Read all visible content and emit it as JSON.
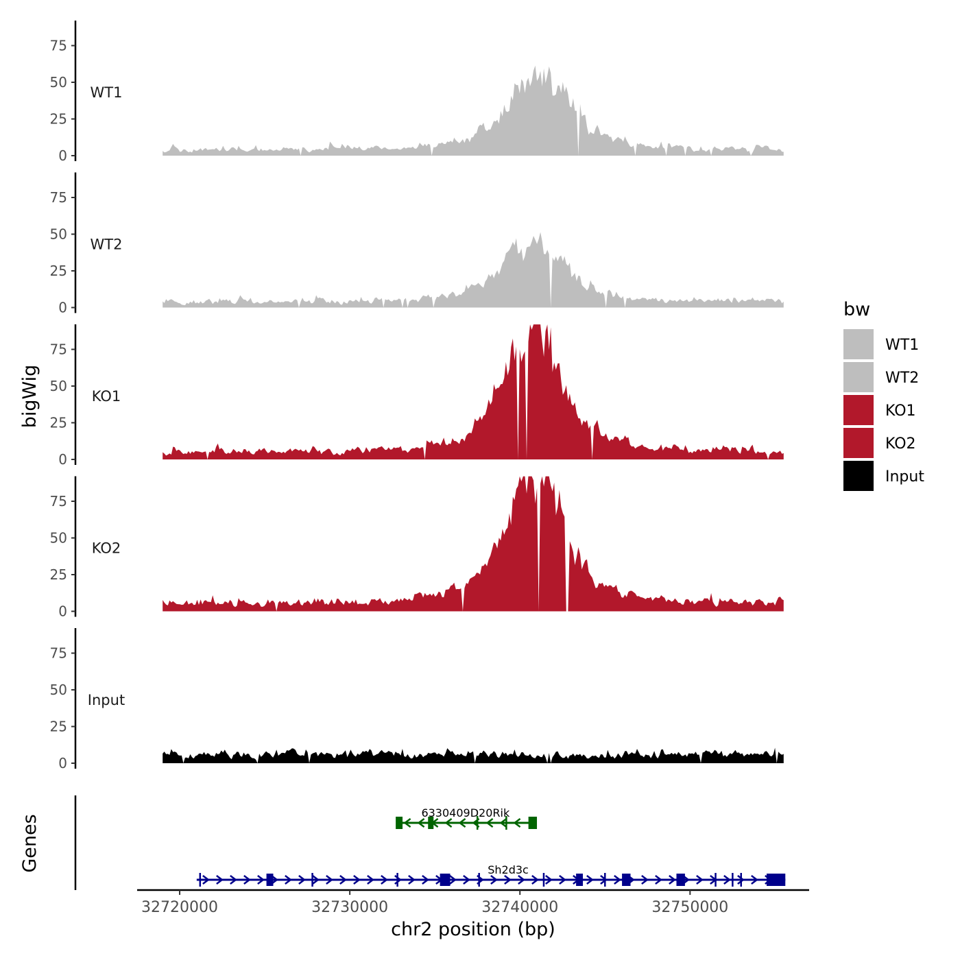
{
  "chart_data": {
    "type": "area",
    "y_axis_title": "bigWig",
    "x_axis_title": "chr2 position (bp)",
    "x_range": [
      32717500,
      32757000
    ],
    "data_x_range": [
      32719000,
      32755500
    ],
    "x_ticks": [
      32720000,
      32730000,
      32740000,
      32750000
    ],
    "x_tick_labels": [
      "32720000",
      "32730000",
      "32740000",
      "32750000"
    ],
    "y_range": [
      0,
      95
    ],
    "y_ticks": [
      0,
      25,
      50,
      75
    ],
    "y_tick_labels": [
      "0",
      "25",
      "50",
      "75"
    ],
    "tracks": [
      {
        "name": "WT1",
        "color": "#bebebe",
        "baseline": 5,
        "noise": 6,
        "peak_center": 32741000,
        "peak_height": 48,
        "peak_width": 1100,
        "seed": 11
      },
      {
        "name": "WT2",
        "color": "#bebebe",
        "baseline": 5,
        "noise": 5,
        "peak_center": 32740700,
        "peak_height": 38,
        "peak_width": 1100,
        "seed": 23
      },
      {
        "name": "KO1",
        "color": "#b2182b",
        "baseline": 6,
        "noise": 7,
        "peak_center": 32740700,
        "peak_height": 82,
        "peak_width": 1000,
        "seed": 37
      },
      {
        "name": "KO2",
        "color": "#b2182b",
        "baseline": 7,
        "noise": 6,
        "peak_center": 32740700,
        "peak_height": 88,
        "peak_width": 1000,
        "seed": 53
      },
      {
        "name": "Input",
        "color": "#000000",
        "baseline": 7,
        "noise": 5,
        "peak_center": 32740000,
        "peak_height": 0,
        "peak_width": 1000,
        "seed": 71
      }
    ],
    "genes_panel_title": "Genes",
    "genes": [
      {
        "name": "6330409D20Rik",
        "strand": "-",
        "start": 32732800,
        "end": 32740800,
        "color": "#006400",
        "exons": [
          [
            32732700,
            32733100
          ],
          [
            32734600,
            32734900
          ],
          [
            32740500,
            32741000
          ]
        ],
        "introns": [
          32737500,
          32739200
        ]
      },
      {
        "name": "Sh2d3c",
        "strand": "+",
        "start": 32721000,
        "end": 32755600,
        "color": "#00008b",
        "exons": [
          [
            32725100,
            32725500
          ],
          [
            32735300,
            32735900
          ],
          [
            32743300,
            32743700
          ],
          [
            32746000,
            32746500
          ],
          [
            32749200,
            32749700
          ],
          [
            32754500,
            32755600
          ]
        ],
        "introns": [
          32721200,
          32727800,
          32732800,
          32737600,
          32741400,
          32745000,
          32751500,
          32752500,
          32753000
        ]
      }
    ],
    "legend": {
      "title": "bw",
      "entries": [
        {
          "label": "WT1",
          "color": "#bebebe"
        },
        {
          "label": "WT2",
          "color": "#bebebe"
        },
        {
          "label": "KO1",
          "color": "#b2182b"
        },
        {
          "label": "KO2",
          "color": "#b2182b"
        },
        {
          "label": "Input",
          "color": "#000000"
        }
      ]
    }
  }
}
